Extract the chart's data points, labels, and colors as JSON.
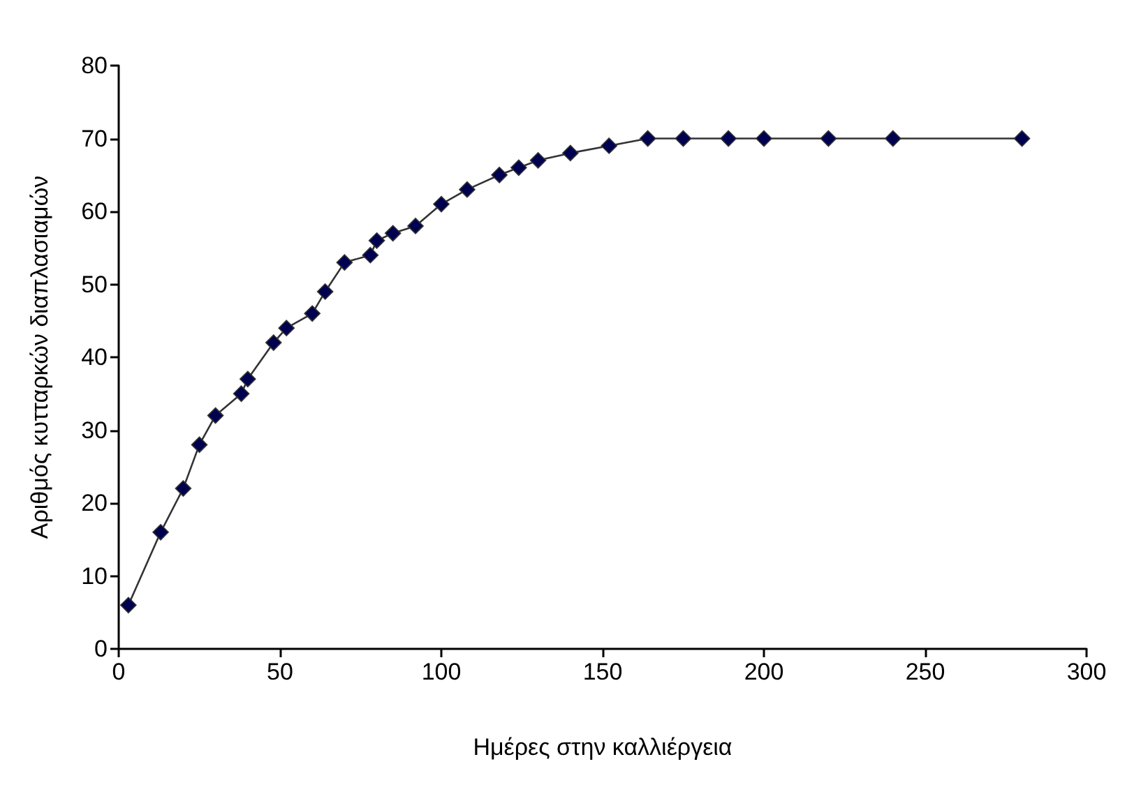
{
  "chart_data": {
    "type": "line",
    "xlabel": "Ημέρες στην καλλιέργεια",
    "ylabel": "Αριθμός κυτταρκών διαπλασιαμών",
    "x": [
      3,
      13,
      20,
      25,
      30,
      38,
      40,
      48,
      52,
      60,
      64,
      70,
      78,
      80,
      85,
      92,
      100,
      108,
      118,
      124,
      130,
      140,
      152,
      164,
      175,
      189,
      200,
      220,
      240,
      280
    ],
    "series": [
      {
        "color": "#000050",
        "values": [
          6,
          16,
          22,
          28,
          32,
          35,
          37,
          42,
          44,
          46,
          49,
          53,
          54,
          56,
          57,
          58,
          61,
          63,
          65,
          66,
          67,
          68,
          69,
          70,
          70,
          70,
          70,
          70,
          70,
          70
        ]
      }
    ],
    "xlim": [
      0,
      300
    ],
    "xticks": [
      0,
      50,
      100,
      150,
      200,
      250,
      300
    ],
    "ylim": [
      0,
      80
    ],
    "yticks": [
      0,
      10,
      20,
      30,
      40,
      50,
      60,
      70,
      80
    ],
    "grid": false,
    "marker": "diamond",
    "line_style": "solid"
  }
}
